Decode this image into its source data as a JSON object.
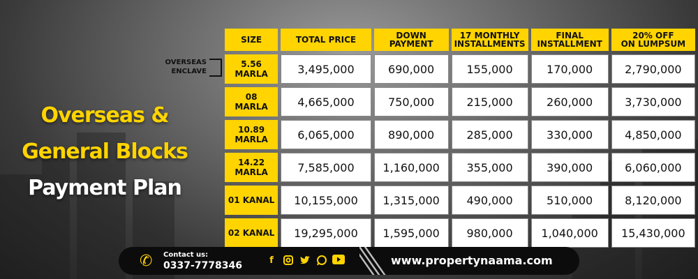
{
  "title": {
    "line1": "Overseas &",
    "line2": "General Blocks",
    "line3": "Payment Plan"
  },
  "overseas_label": {
    "line1": "OVERSEAS",
    "line2": "ENCLAVE"
  },
  "table": {
    "headers": {
      "size": "SIZE",
      "total": "TOTAL PRICE",
      "down_1": "DOWN",
      "down_2": "PAYMENT",
      "monthly_1": "17 MONTHLY",
      "monthly_2": "INSTALLMENTS",
      "final_1": "FINAL",
      "final_2": "INSTALLMENT",
      "lump_1": "20% OFF",
      "lump_2": "ON LUMPSUM"
    },
    "rows": [
      {
        "size1": "5.56",
        "size2": "MARLA",
        "total": "3,495,000",
        "down": "690,000",
        "monthly": "155,000",
        "final": "170,000",
        "lump": "2,790,000"
      },
      {
        "size1": "08",
        "size2": "MARLA",
        "total": "4,665,000",
        "down": "750,000",
        "monthly": "215,000",
        "final": "260,000",
        "lump": "3,730,000"
      },
      {
        "size1": "10.89",
        "size2": "MARLA",
        "total": "6,065,000",
        "down": "890,000",
        "monthly": "285,000",
        "final": "330,000",
        "lump": "4,850,000"
      },
      {
        "size1": "14.22",
        "size2": "MARLA",
        "total": "7,585,000",
        "down": "1,160,000",
        "monthly": "355,000",
        "final": "390,000",
        "lump": "6,060,000"
      },
      {
        "size1": "01 KANAL",
        "size2": "",
        "total": "10,155,000",
        "down": "1,315,000",
        "monthly": "490,000",
        "final": "510,000",
        "lump": "8,120,000"
      },
      {
        "size1": "02 KANAL",
        "size2": "",
        "total": "19,295,000",
        "down": "1,595,000",
        "monthly": "980,000",
        "final": "1,040,000",
        "lump": "15,430,000"
      }
    ]
  },
  "footer": {
    "contact_label": "Contact us:",
    "phone": "0337-7778346",
    "icons": [
      "phone-icon",
      "facebook-icon",
      "instagram-icon",
      "twitter-icon",
      "whatsapp-icon",
      "youtube-icon"
    ],
    "website": "www.propertynaama.com"
  },
  "colors": {
    "accent": "#FFD400",
    "dark": "#0c0c0c",
    "cell": "#ffffff"
  }
}
